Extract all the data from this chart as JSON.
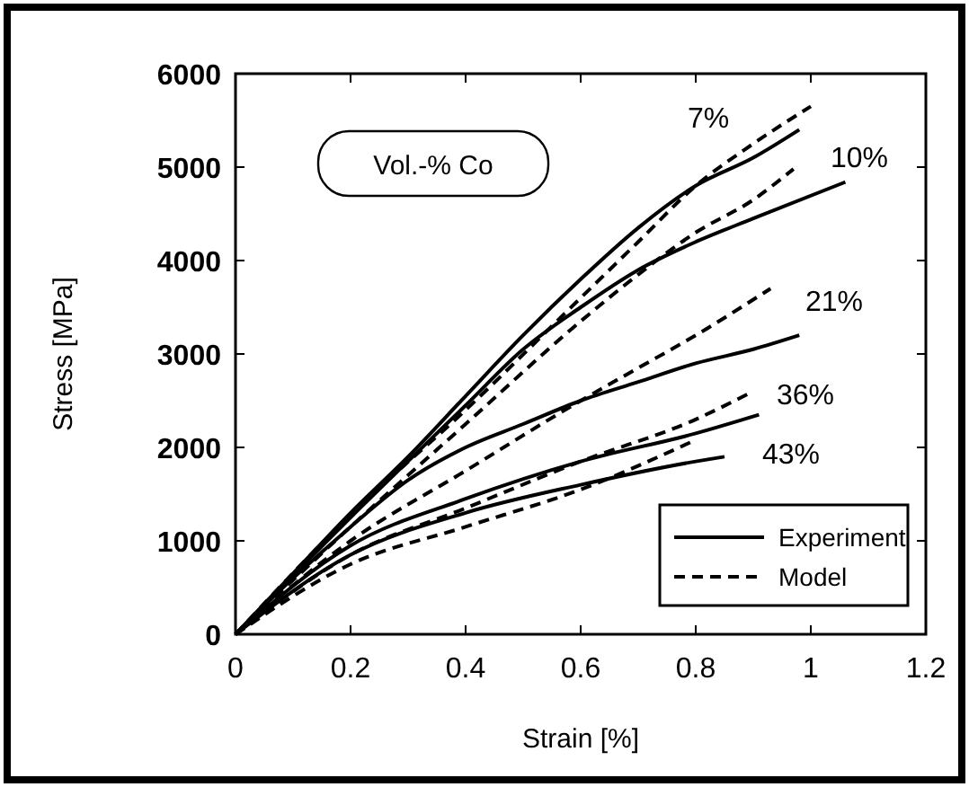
{
  "chart_data": {
    "type": "line",
    "xlabel": "Strain  [%]",
    "ylabel": "Stress  [MPa]",
    "xlim": [
      0,
      1.2
    ],
    "ylim": [
      0,
      6000
    ],
    "xticks": [
      0,
      0.2,
      0.4,
      0.6,
      0.8,
      1,
      1.2
    ],
    "yticks": [
      0,
      1000,
      2000,
      3000,
      4000,
      5000,
      6000
    ],
    "legend": "bottom right",
    "grid": false,
    "annotations": [
      "Vol.-% Co",
      "7%",
      "10%",
      "21%",
      "36%",
      "43%"
    ],
    "series": [
      {
        "name": "Experiment",
        "color": "#000000",
        "line_style": "solid",
        "x": [
          0,
          0.1,
          0.2,
          0.3,
          0.4,
          0.5,
          0.6,
          0.7,
          0.8,
          0.9,
          0.98
        ],
        "values": [
          0,
          650,
          1300,
          1900,
          2550,
          3200,
          3800,
          4350,
          4800,
          5100,
          5400
        ]
      },
      {
        "name": "Model",
        "color": "#000000",
        "line_style": "dashed",
        "x": [
          0,
          0.2,
          0.4,
          0.6,
          0.7,
          0.8,
          0.9,
          1.0
        ],
        "values": [
          0,
          1280,
          2400,
          3600,
          4200,
          4800,
          5250,
          5650
        ]
      },
      {
        "color": "#000000",
        "line_style": "solid",
        "x": [
          0,
          0.2,
          0.4,
          0.5,
          0.6,
          0.7,
          0.8,
          0.9,
          1.06
        ],
        "values": [
          0,
          1250,
          2450,
          3050,
          3500,
          3900,
          4200,
          4450,
          4840
        ]
      },
      {
        "color": "#000000",
        "line_style": "dashed",
        "x": [
          0,
          0.2,
          0.4,
          0.6,
          0.7,
          0.8,
          0.9,
          0.97
        ],
        "values": [
          0,
          1150,
          2250,
          3350,
          3850,
          4300,
          4650,
          4980
        ]
      },
      {
        "color": "#000000",
        "line_style": "solid",
        "x": [
          0,
          0.1,
          0.2,
          0.3,
          0.4,
          0.5,
          0.6,
          0.7,
          0.8,
          0.9,
          0.98
        ],
        "values": [
          0,
          600,
          1150,
          1650,
          2000,
          2250,
          2500,
          2700,
          2900,
          3050,
          3200
        ]
      },
      {
        "color": "#000000",
        "line_style": "dashed",
        "x": [
          0,
          0.2,
          0.4,
          0.6,
          0.7,
          0.8,
          0.93
        ],
        "values": [
          0,
          1000,
          1750,
          2500,
          2850,
          3200,
          3700
        ]
      },
      {
        "color": "#000000",
        "line_style": "solid",
        "x": [
          0,
          0.2,
          0.4,
          0.6,
          0.8,
          0.91
        ],
        "values": [
          0,
          950,
          1450,
          1850,
          2150,
          2350
        ]
      },
      {
        "color": "#000000",
        "line_style": "dashed",
        "x": [
          0,
          0.2,
          0.4,
          0.6,
          0.8,
          0.9
        ],
        "values": [
          0,
          850,
          1350,
          1850,
          2300,
          2600
        ]
      },
      {
        "color": "#000000",
        "line_style": "solid",
        "x": [
          0,
          0.2,
          0.4,
          0.6,
          0.8,
          0.85
        ],
        "values": [
          0,
          850,
          1300,
          1600,
          1850,
          1900
        ]
      },
      {
        "color": "#000000",
        "line_style": "dashed",
        "x": [
          0,
          0.2,
          0.4,
          0.6,
          0.8
        ],
        "values": [
          0,
          750,
          1150,
          1550,
          2080
        ]
      }
    ]
  }
}
